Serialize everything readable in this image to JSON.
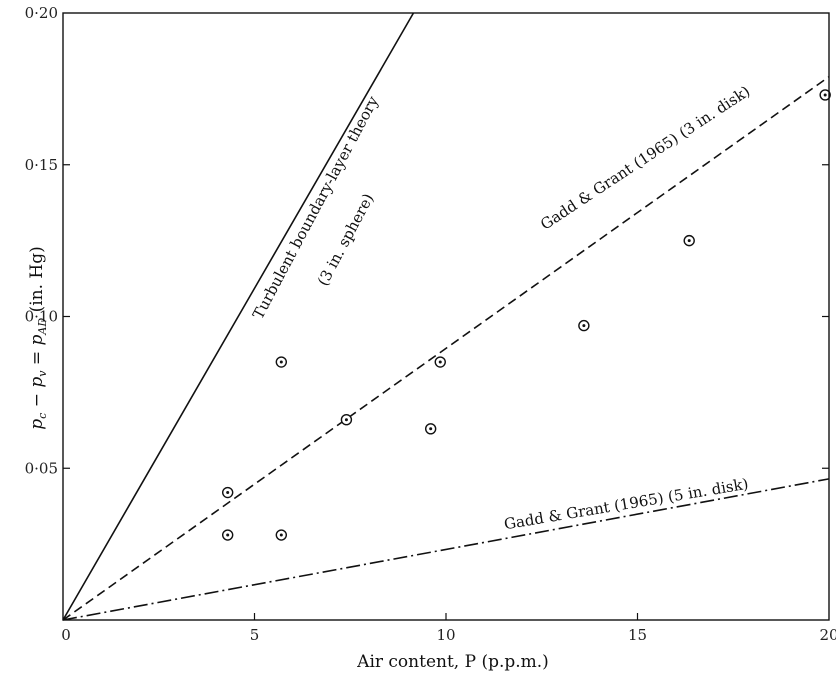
{
  "chart_data": {
    "type": "scatter",
    "xlabel": "Air content, P (p.p.m.)",
    "ylabel": "p_c − p_v = p_AD (in. Hg)",
    "xlim": [
      0,
      20
    ],
    "ylim": [
      0,
      0.2
    ],
    "x_ticks": [
      {
        "value": 0,
        "label": "0"
      },
      {
        "value": 5,
        "label": "5"
      },
      {
        "value": 10,
        "label": "10"
      },
      {
        "value": 15,
        "label": "15"
      },
      {
        "value": 20,
        "label": "20"
      }
    ],
    "y_ticks": [
      {
        "value": 0.05,
        "label": "0·05"
      },
      {
        "value": 0.1,
        "label": "0·10"
      },
      {
        "value": 0.15,
        "label": "0·15"
      },
      {
        "value": 0.2,
        "label": "0·20"
      }
    ],
    "grid": false,
    "points": [
      {
        "x": 4.3,
        "y": 0.042
      },
      {
        "x": 4.3,
        "y": 0.028
      },
      {
        "x": 5.7,
        "y": 0.085
      },
      {
        "x": 5.7,
        "y": 0.028
      },
      {
        "x": 7.4,
        "y": 0.066
      },
      {
        "x": 9.6,
        "y": 0.063
      },
      {
        "x": 9.85,
        "y": 0.085
      },
      {
        "x": 13.6,
        "y": 0.097
      },
      {
        "x": 16.35,
        "y": 0.125
      },
      {
        "x": 19.9,
        "y": 0.173
      }
    ],
    "series": [
      {
        "name": "Turbulent boundary-layer theory (3 in. sphere)",
        "style": "solid",
        "x": [
          0,
          9.15
        ],
        "y": [
          0,
          0.2
        ]
      },
      {
        "name": "Gadd & Grant (1965) (3 in. disk)",
        "style": "dashed",
        "x": [
          0,
          20
        ],
        "y": [
          0,
          0.179
        ]
      },
      {
        "name": "Gadd & Grant (1965) (5 in. disk)",
        "style": "dashdot",
        "x": [
          0,
          20
        ],
        "y": [
          0,
          0.0465
        ]
      }
    ],
    "annotations": {
      "turbulent_line1": "Turbulent boundary-layer theory",
      "turbulent_line2": "(3 in. sphere)",
      "disk3": "Gadd & Grant (1965) (3 in. disk)",
      "disk5": "Gadd & Grant (1965) (5 in. disk)"
    },
    "colors": {
      "ink": "#111111",
      "background": "#ffffff"
    }
  }
}
